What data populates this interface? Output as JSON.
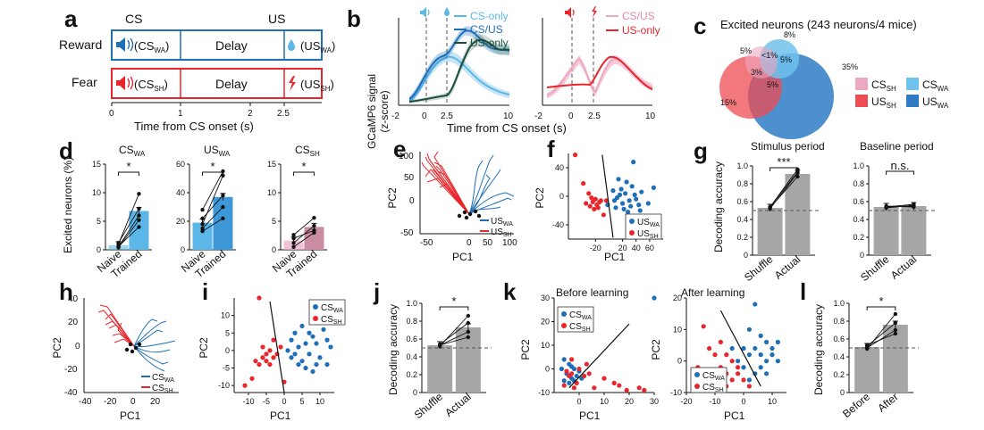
{
  "panels": {
    "a": {
      "label": "a",
      "cs": "CS",
      "us": "US",
      "reward": "Reward",
      "fear": "Fear",
      "delay": "Delay",
      "cs_wa": "(CS",
      "cs_wa_sub": "WA",
      "us_wa": "(US",
      "us_wa_sub": "WA",
      "cs_sh": "(CS",
      "cs_sh_sub": "SH",
      "us_sh": "(US",
      "us_sh_sub": "SH",
      "paren_close": ")",
      "ticks": [
        "0",
        "1",
        "2",
        "2.5"
      ],
      "xlabel": "Time from CS onset (s)"
    },
    "b": {
      "label": "b",
      "ylabel1": "GCaMP6 signal",
      "ylabel2": "(z-score)",
      "xlabel": "Time from CS onset (s)",
      "left_legend": [
        "CS-only",
        "CS/US",
        "US-only"
      ],
      "right_legend": [
        "CS/US",
        "US-only"
      ],
      "sub_wa": "WA",
      "sub_sh": "SH",
      "left_ticks": [
        "-2",
        "0",
        "2.5",
        "10"
      ],
      "right_ticks": [
        "-2",
        "0",
        "2.5",
        "10"
      ]
    },
    "c": {
      "label": "c",
      "title": "Excited neurons (243 neurons/4 mice)",
      "pcts": [
        "8%",
        "5%",
        "<1%",
        "5%",
        "3%",
        "5%",
        "35%",
        "15%"
      ],
      "legend": [
        "CS",
        "CS",
        "US",
        "US"
      ],
      "legend_sub": [
        "SH",
        "WA",
        "SH",
        "WA"
      ]
    },
    "d": {
      "label": "d",
      "ylabel": "Excited neurons (%)",
      "star": "*",
      "xcats": [
        "Naive",
        "Trained"
      ],
      "titles": [
        "CS",
        "US",
        "CS"
      ],
      "title_subs": [
        "WA",
        "WA",
        "SH"
      ]
    },
    "e": {
      "label": "e",
      "xlabel": "PC1",
      "ylabel": "PC2",
      "legend": [
        "US",
        "US"
      ],
      "legend_sub": [
        "WA",
        "SH"
      ]
    },
    "f": {
      "label": "f",
      "xlabel": "PC1",
      "ylabel": "PC2",
      "legend": [
        "US",
        "US"
      ],
      "legend_sub": [
        "WA",
        "SH"
      ]
    },
    "g": {
      "label": "g",
      "ylabel": "Decoding accuracy",
      "titles": [
        "Stimulus period",
        "Baseline period"
      ],
      "xcats": [
        "Shuffle",
        "Actual"
      ],
      "sig": [
        "***",
        "n.s."
      ]
    },
    "h": {
      "label": "h",
      "xlabel": "PC1",
      "ylabel": "PC2",
      "legend": [
        "CS",
        "CS"
      ],
      "legend_sub": [
        "WA",
        "SH"
      ]
    },
    "i": {
      "label": "i",
      "xlabel": "PC1",
      "ylabel": "PC2",
      "legend": [
        "CS",
        "CS"
      ],
      "legend_sub": [
        "WA",
        "SH"
      ]
    },
    "j": {
      "label": "j",
      "ylabel": "Decoding accuracy",
      "xcats": [
        "Shuffle",
        "Actual"
      ],
      "sig": "*"
    },
    "k": {
      "label": "k",
      "xlabel": "PC1",
      "ylabel": "PC2",
      "titles": [
        "Before learning",
        "After learning"
      ],
      "legend": [
        "CS",
        "CS"
      ],
      "legend_sub": [
        "WA",
        "SH"
      ]
    },
    "l": {
      "label": "l",
      "ylabel": "Decoding accuracy",
      "xcats": [
        "Before",
        "After"
      ],
      "sig": "*"
    }
  },
  "colors": {
    "wa_dark": "#1f6fb8",
    "wa_light": "#5bb7e8",
    "sh_red": "#e8262b",
    "sh_pink": "#eda9c2",
    "gray_bar": "#a6a6a6",
    "venn_red": "#ee4b52",
    "venn_blue": "#2f7bc4",
    "venn_light": "#6ec2ec",
    "grayline": "#555555"
  },
  "chart_data": [
    {
      "id": "d1",
      "type": "bar",
      "categories": [
        "Naive",
        "Trained"
      ],
      "values": [
        0.8,
        6.8
      ],
      "ylim": [
        0,
        15
      ],
      "yticks": [
        "0",
        "5",
        "10",
        "15"
      ],
      "pairs": [
        [
          0.5,
          6.0
        ],
        [
          1.0,
          9.8
        ],
        [
          0.4,
          5.2
        ],
        [
          1.2,
          7.2
        ],
        [
          0.6,
          4.0
        ]
      ]
    },
    {
      "id": "d2",
      "type": "bar",
      "categories": [
        "Naive",
        "Trained"
      ],
      "values": [
        19,
        37
      ],
      "ylim": [
        0,
        60
      ],
      "yticks": [
        "0",
        "20",
        "40",
        "60"
      ],
      "pairs": [
        [
          18,
          52
        ],
        [
          28,
          55
        ],
        [
          13,
          22
        ],
        [
          22,
          38
        ],
        [
          15,
          30
        ]
      ]
    },
    {
      "id": "d3",
      "type": "bar",
      "categories": [
        "Naive",
        "Trained"
      ],
      "values": [
        1.6,
        4.0
      ],
      "ylim": [
        0,
        15
      ],
      "yticks": [
        "0",
        "5",
        "10",
        "15"
      ],
      "pairs": [
        [
          0.5,
          3.0
        ],
        [
          1.2,
          4.2
        ],
        [
          2.6,
          5.6
        ],
        [
          2.0,
          3.4
        ]
      ]
    },
    {
      "id": "g1",
      "type": "bar",
      "categories": [
        "Shuffle",
        "Actual"
      ],
      "values": [
        0.53,
        0.91
      ],
      "ylim": [
        0,
        1.0
      ],
      "chance": 0.5,
      "yticks": [
        "0",
        "0.2",
        "0.4",
        "0.6",
        "0.8",
        "1.0"
      ],
      "pairs": [
        [
          0.53,
          0.88
        ],
        [
          0.54,
          0.96
        ],
        [
          0.52,
          0.92
        ],
        [
          0.54,
          0.93
        ]
      ]
    },
    {
      "id": "g2",
      "type": "bar",
      "categories": [
        "Shuffle",
        "Actual"
      ],
      "values": [
        0.54,
        0.55
      ],
      "ylim": [
        0,
        1.0
      ],
      "chance": 0.5,
      "yticks": [
        "0",
        "0.2",
        "0.4",
        "0.6",
        "0.8",
        "1.0"
      ],
      "pairs": [
        [
          0.53,
          0.56
        ],
        [
          0.54,
          0.57
        ],
        [
          0.55,
          0.54
        ],
        [
          0.54,
          0.55
        ]
      ]
    },
    {
      "id": "j",
      "type": "bar",
      "categories": [
        "Shuffle",
        "Actual"
      ],
      "values": [
        0.53,
        0.73
      ],
      "ylim": [
        0,
        1.0
      ],
      "chance": 0.5,
      "yticks": [
        "0",
        "0.2",
        "0.4",
        "0.6",
        "0.8",
        "1.0"
      ],
      "pairs": [
        [
          0.52,
          0.86
        ],
        [
          0.54,
          0.78
        ],
        [
          0.53,
          0.68
        ],
        [
          0.53,
          0.62
        ]
      ]
    },
    {
      "id": "l",
      "type": "bar",
      "categories": [
        "Before",
        "After"
      ],
      "values": [
        0.51,
        0.76
      ],
      "ylim": [
        0,
        1.0
      ],
      "chance": 0.5,
      "yticks": [
        "0",
        "0.2",
        "0.4",
        "0.6",
        "0.8",
        "1.0"
      ],
      "pairs": [
        [
          0.49,
          0.88
        ],
        [
          0.52,
          0.78
        ],
        [
          0.5,
          0.7
        ],
        [
          0.53,
          0.66
        ]
      ]
    },
    {
      "id": "f",
      "type": "scatter",
      "xlim": [
        -60,
        80
      ],
      "ylim": [
        -60,
        60
      ],
      "xticks": [
        -20,
        20,
        40,
        60
      ],
      "yticks": [
        -40,
        0,
        40
      ],
      "series": [
        {
          "name": "US",
          "color": "wa_dark",
          "points": [
            [
              36,
              48
            ],
            [
              6,
              8
            ],
            [
              12,
              -2
            ],
            [
              18,
              10
            ],
            [
              24,
              4
            ],
            [
              30,
              -6
            ],
            [
              38,
              2
            ],
            [
              44,
              -12
            ],
            [
              20,
              -10
            ],
            [
              10,
              -16
            ],
            [
              28,
              -22
            ],
            [
              48,
              6
            ],
            [
              58,
              -10
            ],
            [
              66,
              12
            ],
            [
              14,
              24
            ],
            [
              34,
              14
            ],
            [
              40,
              -4
            ],
            [
              -2,
              -12
            ],
            [
              22,
              -18
            ],
            [
              52,
              -28
            ],
            [
              8,
              -6
            ],
            [
              26,
              20
            ],
            [
              16,
              2
            ],
            [
              32,
              -14
            ],
            [
              46,
              -20
            ]
          ]
        },
        {
          "name": "US",
          "color": "sh_red",
          "points": [
            [
              -50,
              58
            ],
            [
              -38,
              18
            ],
            [
              -30,
              4
            ],
            [
              -24,
              -8
            ],
            [
              -18,
              -12
            ],
            [
              -28,
              -14
            ],
            [
              -20,
              -4
            ],
            [
              -14,
              -8
            ],
            [
              -34,
              -10
            ],
            [
              -22,
              -18
            ],
            [
              -8,
              -26
            ],
            [
              -12,
              -6
            ],
            [
              -26,
              -2
            ],
            [
              -16,
              -16
            ],
            [
              -4,
              -6
            ]
          ]
        }
      ]
    },
    {
      "id": "i",
      "type": "scatter",
      "xlim": [
        -14,
        14
      ],
      "ylim": [
        -12,
        15
      ],
      "xticks": [
        -10,
        -5,
        0,
        5,
        10
      ],
      "yticks": [
        -10,
        -5,
        0,
        5,
        10
      ],
      "series": [
        {
          "name": "CS",
          "color": "wa_dark",
          "points": [
            [
              2,
              3
            ],
            [
              4,
              1
            ],
            [
              6,
              2
            ],
            [
              8,
              4
            ],
            [
              3,
              -1
            ],
            [
              5,
              -3
            ],
            [
              7,
              -1
            ],
            [
              9,
              2
            ],
            [
              11,
              6
            ],
            [
              12,
              3
            ],
            [
              10,
              -2
            ],
            [
              6,
              -5
            ],
            [
              8,
              -6
            ],
            [
              4,
              -4
            ],
            [
              2,
              -2
            ],
            [
              13,
              1
            ],
            [
              10,
              8
            ],
            [
              3,
              5
            ],
            [
              9,
              -4
            ],
            [
              5,
              7
            ],
            [
              12,
              -4
            ],
            [
              1,
              0
            ],
            [
              7,
              5
            ]
          ]
        },
        {
          "name": "CS",
          "color": "sh_red",
          "points": [
            [
              -7,
              15
            ],
            [
              -11,
              -10
            ],
            [
              -8,
              -3
            ],
            [
              -6,
              1
            ],
            [
              -5,
              -1
            ],
            [
              -4,
              0
            ],
            [
              -3,
              -2
            ],
            [
              -5,
              -3
            ],
            [
              -7,
              -4
            ],
            [
              -2,
              -1
            ],
            [
              -6,
              -2
            ],
            [
              -4,
              -4
            ],
            [
              -9,
              -8
            ],
            [
              -3,
              3
            ],
            [
              0,
              -9
            ],
            [
              -1,
              1
            ]
          ]
        }
      ]
    },
    {
      "id": "k1",
      "type": "scatter",
      "xlim": [
        -10,
        30
      ],
      "ylim": [
        -10,
        30
      ],
      "xticks": [
        0,
        10,
        20,
        30
      ],
      "yticks": [
        -10,
        0,
        10,
        20,
        30
      ],
      "series": [
        {
          "name": "CS",
          "color": "wa_dark",
          "points": [
            [
              30,
              30
            ],
            [
              -6,
              4
            ],
            [
              -4,
              2
            ],
            [
              -2,
              0
            ],
            [
              -5,
              -2
            ],
            [
              -3,
              -4
            ],
            [
              -1,
              -3
            ],
            [
              -6,
              -5
            ],
            [
              -4,
              -6
            ],
            [
              0,
              -1
            ],
            [
              -2,
              -5
            ],
            [
              -7,
              0
            ],
            [
              1,
              -4
            ],
            [
              -3,
              1
            ]
          ]
        },
        {
          "name": "CS",
          "color": "sh_red",
          "points": [
            [
              -5,
              -1
            ],
            [
              -3,
              -2
            ],
            [
              -1,
              -6
            ],
            [
              2,
              -3
            ],
            [
              4,
              -2
            ],
            [
              -2,
              -8
            ],
            [
              10,
              -4
            ],
            [
              14,
              -6
            ],
            [
              16,
              -7
            ],
            [
              24,
              -8
            ],
            [
              26,
              -9
            ],
            [
              -4,
              -3
            ],
            [
              0,
              0
            ],
            [
              6,
              -8
            ],
            [
              3,
              2
            ],
            [
              -6,
              -7
            ],
            [
              -3,
              4
            ],
            [
              19,
              -9
            ]
          ]
        }
      ]
    },
    {
      "id": "k2",
      "type": "scatter",
      "xlim": [
        -20,
        15
      ],
      "ylim": [
        -10,
        20
      ],
      "xticks": [
        -20,
        -10,
        0,
        10
      ],
      "yticks": [
        -10,
        0,
        10,
        20
      ],
      "series": [
        {
          "name": "CS",
          "color": "wa_dark",
          "points": [
            [
              4,
              18
            ],
            [
              2,
              10
            ],
            [
              6,
              8
            ],
            [
              8,
              6
            ],
            [
              10,
              4
            ],
            [
              4,
              4
            ],
            [
              6,
              2
            ],
            [
              8,
              0
            ],
            [
              2,
              2
            ],
            [
              0,
              4
            ],
            [
              6,
              -2
            ],
            [
              10,
              2
            ],
            [
              12,
              6
            ],
            [
              -2,
              0
            ],
            [
              4,
              -4
            ],
            [
              -10,
              -6
            ],
            [
              -4,
              4
            ],
            [
              2,
              -6
            ],
            [
              8,
              -4
            ],
            [
              0,
              -2
            ],
            [
              12,
              0
            ]
          ]
        },
        {
          "name": "CS",
          "color": "sh_red",
          "points": [
            [
              -14,
              11
            ],
            [
              -8,
              6
            ],
            [
              -12,
              4
            ],
            [
              -6,
              2
            ],
            [
              -4,
              0
            ],
            [
              -8,
              -2
            ],
            [
              -10,
              -4
            ],
            [
              -6,
              -4
            ],
            [
              -2,
              -2
            ],
            [
              -4,
              -6
            ],
            [
              -12,
              -8
            ],
            [
              -6,
              -8
            ],
            [
              -2,
              -4
            ],
            [
              -16,
              -2
            ],
            [
              0,
              -6
            ],
            [
              2,
              -8
            ],
            [
              -10,
              2
            ]
          ]
        }
      ]
    }
  ]
}
